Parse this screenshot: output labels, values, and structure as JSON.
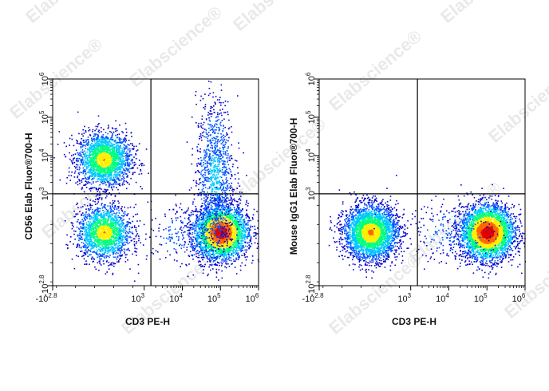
{
  "watermark": "Elabscience®",
  "colors": {
    "gate": "#000000",
    "density": [
      "#0000cc",
      "#0055ff",
      "#00c8ff",
      "#00ff80",
      "#ffee00",
      "#ff6600",
      "#e00000"
    ]
  },
  "chart_data": [
    {
      "type": "scatter",
      "subtype": "flow-cytometry-density-plot",
      "xlabel": "CD3 PE-H",
      "ylabel": "CD56 Elab Fluor®700-H",
      "x_scale": "biexponential",
      "y_scale": "biexponential",
      "xlim": [
        -630,
        1000000
      ],
      "ylim": [
        -630,
        1000000
      ],
      "x_ticks": [
        {
          "base": "-10",
          "exp": "2.8"
        },
        {
          "base": "10",
          "exp": "3"
        },
        {
          "base": "10",
          "exp": "4"
        },
        {
          "base": "10",
          "exp": "5"
        },
        {
          "base": "10",
          "exp": "6"
        }
      ],
      "y_ticks": [
        {
          "base": "-10",
          "exp": "2.8"
        },
        {
          "base": "10",
          "exp": "3"
        },
        {
          "base": "10",
          "exp": "4"
        },
        {
          "base": "10",
          "exp": "5"
        },
        {
          "base": "10",
          "exp": "6"
        }
      ],
      "gate": {
        "x": 1500,
        "y": 1000
      },
      "populations": [
        {
          "x": 120,
          "y": 8000,
          "n": 2200,
          "spread_x": 0.35,
          "spread_y": 0.35,
          "density": 0.7
        },
        {
          "x": 120,
          "y": 150,
          "n": 1800,
          "spread_x": 0.35,
          "spread_y": 0.35,
          "density": 0.7
        },
        {
          "x": 100000,
          "y": 150,
          "n": 3200,
          "spread_x": 0.35,
          "spread_y": 0.35,
          "density": 1.0
        },
        {
          "x": 70000,
          "y": 3000,
          "n": 1100,
          "spread_x": 0.25,
          "spread_y": 1.0,
          "density": 0.35
        },
        {
          "x": 20000,
          "y": 120,
          "n": 300,
          "spread_x": 0.7,
          "spread_y": 0.45,
          "density": 0.25
        }
      ]
    },
    {
      "type": "scatter",
      "subtype": "flow-cytometry-density-plot",
      "xlabel": "CD3 PE-H",
      "ylabel": "Mouse IgG1 Elab Fluor®700-H",
      "x_scale": "biexponential",
      "y_scale": "biexponential",
      "xlim": [
        -630,
        1000000
      ],
      "ylim": [
        -630,
        1000000
      ],
      "x_ticks": [
        {
          "base": "-10",
          "exp": "2.8"
        },
        {
          "base": "10",
          "exp": "3"
        },
        {
          "base": "10",
          "exp": "4"
        },
        {
          "base": "10",
          "exp": "5"
        },
        {
          "base": "10",
          "exp": "6"
        }
      ],
      "y_ticks": [
        {
          "base": "-10",
          "exp": "2.8"
        },
        {
          "base": "10",
          "exp": "3"
        },
        {
          "base": "10",
          "exp": "4"
        },
        {
          "base": "10",
          "exp": "5"
        },
        {
          "base": "10",
          "exp": "6"
        }
      ],
      "gate": {
        "x": 1500,
        "y": 1000
      },
      "populations": [
        {
          "x": 120,
          "y": 150,
          "n": 3200,
          "spread_x": 0.35,
          "spread_y": 0.35,
          "density": 0.75
        },
        {
          "x": 100000,
          "y": 150,
          "n": 3600,
          "spread_x": 0.35,
          "spread_y": 0.35,
          "density": 1.0
        },
        {
          "x": 15000,
          "y": 150,
          "n": 250,
          "spread_x": 0.7,
          "spread_y": 0.4,
          "density": 0.25
        }
      ]
    }
  ]
}
